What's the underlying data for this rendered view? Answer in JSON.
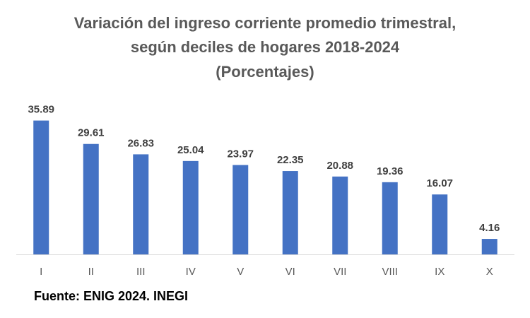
{
  "chart_data": {
    "type": "bar",
    "title": [
      "Variación del ingreso corriente promedio trimestral,",
      "según deciles de hogares 2018-2024",
      "(Porcentajes)"
    ],
    "categories": [
      "I",
      "II",
      "III",
      "IV",
      "V",
      "VI",
      "VII",
      "VIII",
      "IX",
      "X"
    ],
    "series": [
      {
        "values": [
          35.89,
          29.61,
          26.83,
          25.04,
          23.97,
          22.35,
          20.88,
          19.36,
          16.07,
          4.16
        ]
      }
    ],
    "value_labels": [
      "35.89",
      "29.61",
      "26.83",
      "25.04",
      "23.97",
      "22.35",
      "20.88",
      "19.36",
      "16.07",
      "4.16"
    ],
    "ylim": [
      0,
      36
    ],
    "xlabel": "",
    "ylabel": "",
    "grid": false,
    "legend": "none",
    "bar_color": "#4472C4",
    "axis_color": "#D9D9D9",
    "label_color": "#404040",
    "tick_color": "#595959"
  },
  "footer": {
    "source": "Fuente: ENIG 2024. INEGI"
  }
}
